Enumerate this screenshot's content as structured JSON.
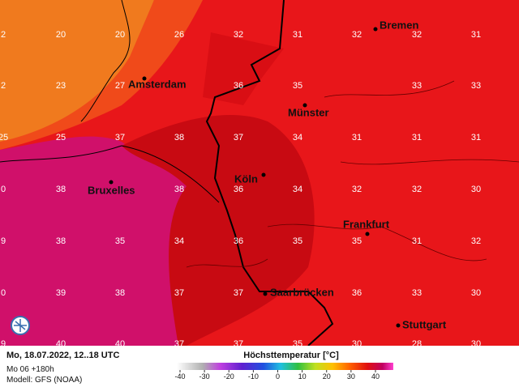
{
  "map": {
    "grid": [
      [
        "2",
        "20",
        "20",
        "26",
        "32",
        "31",
        "32",
        "32",
        "31"
      ],
      [
        "2",
        "23",
        "27",
        null,
        "36",
        "35",
        null,
        "33",
        "33"
      ],
      [
        "25",
        "25",
        "37",
        "38",
        "37",
        "34",
        "31",
        "31",
        "31"
      ],
      [
        "0",
        "38",
        null,
        "38",
        "36",
        "34",
        "32",
        "32",
        "30"
      ],
      [
        "9",
        "38",
        "35",
        "34",
        "36",
        "35",
        "35",
        "31",
        "32"
      ],
      [
        "0",
        "39",
        "38",
        "37",
        "37",
        null,
        "36",
        "33",
        "30"
      ],
      [
        "9",
        "40",
        "40",
        "37",
        "37",
        "35",
        "30",
        "28",
        "30"
      ]
    ],
    "cities": [
      "Bremen",
      "Amsterdam",
      "Münster",
      "Köln",
      "Bruxelles",
      "Frankfurt",
      "Saarbrücken",
      "Stuttgart"
    ]
  },
  "footer": {
    "date": "Mo, 18.07.2022, 12..18 UTC",
    "run": "Mo 06 +180h",
    "model": "Modell: GFS (NOAA)",
    "legend_title": "Höchsttemperatur [°C]",
    "legend_ticks": [
      -40,
      -30,
      -20,
      -10,
      0,
      10,
      20,
      30,
      40
    ]
  }
}
